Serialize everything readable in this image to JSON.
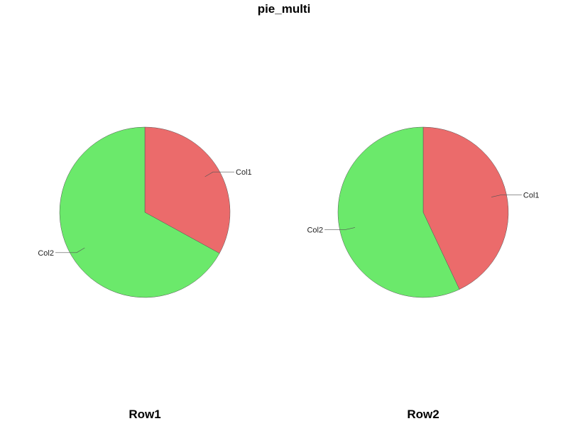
{
  "chart_data": {
    "type": "pie",
    "title": "pie_multi",
    "colors": {
      "Col1": "#eb6b6b",
      "Col2": "#6be96b"
    },
    "pies": [
      {
        "name": "Row1",
        "slices": [
          {
            "label": "Col1",
            "value": 33
          },
          {
            "label": "Col2",
            "value": 67
          }
        ]
      },
      {
        "name": "Row2",
        "slices": [
          {
            "label": "Col1",
            "value": 43
          },
          {
            "label": "Col2",
            "value": 57
          }
        ]
      }
    ]
  }
}
